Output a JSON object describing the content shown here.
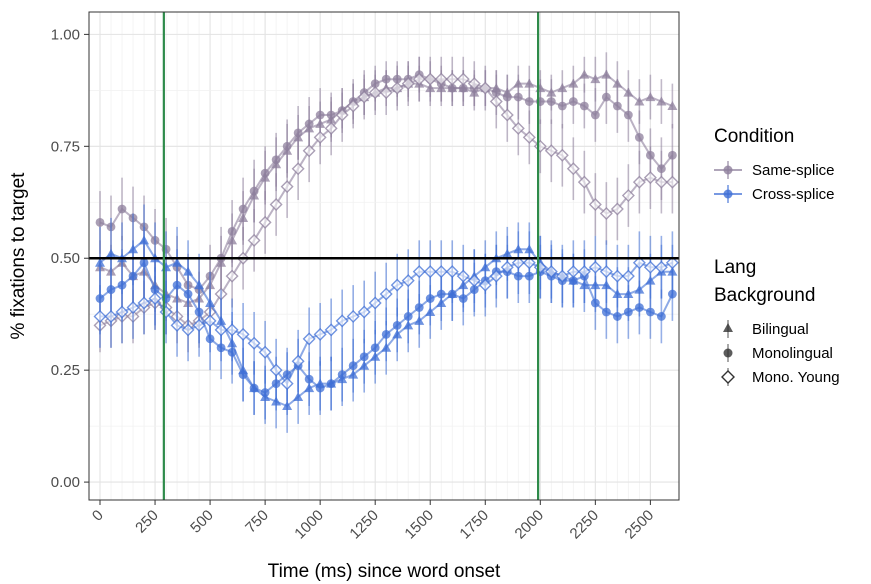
{
  "chart_data": {
    "type": "line",
    "xlabel": "Time (ms) since word onset",
    "ylabel": "% fixations to target",
    "xlim": [
      -50,
      2630
    ],
    "ylim": [
      -0.04,
      1.05
    ],
    "x_ticks": [
      0,
      250,
      500,
      750,
      1000,
      1250,
      1500,
      1750,
      2000,
      2250,
      2500
    ],
    "x_tick_labels": [
      "0",
      "250",
      "500",
      "750",
      "1000",
      "1250",
      "1500",
      "1750",
      "2000",
      "2250",
      "2500"
    ],
    "y_ticks": [
      0,
      0.25,
      0.5,
      0.75,
      1.0
    ],
    "y_tick_labels": [
      "0.00",
      "0.25",
      "0.50",
      "0.75",
      "1.00"
    ],
    "grid": true,
    "reference_lines": {
      "horizontal": [
        {
          "y": 0.5,
          "color": "#000000"
        }
      ],
      "vertical": [
        {
          "x": 290,
          "color": "#2e8b4a"
        },
        {
          "x": 1990,
          "color": "#2e8b4a"
        }
      ]
    },
    "legend": {
      "placement": "right",
      "condition_title": "Condition",
      "condition_entries": [
        {
          "label": "Same-splice",
          "color": "#8e7f9c"
        },
        {
          "label": "Cross-splice",
          "color": "#3f6fd6"
        }
      ],
      "background_title_line1": "Lang",
      "background_title_line2": "Background",
      "background_entries": [
        {
          "label": "Bilingual",
          "shape": "triangle"
        },
        {
          "label": "Monolingual",
          "shape": "circle"
        },
        {
          "label": "Mono. Young",
          "shape": "diamond-open"
        }
      ]
    },
    "x": [
      0,
      50,
      100,
      150,
      200,
      250,
      300,
      350,
      400,
      450,
      500,
      550,
      600,
      650,
      700,
      750,
      800,
      850,
      900,
      950,
      1000,
      1050,
      1100,
      1150,
      1200,
      1250,
      1300,
      1350,
      1400,
      1450,
      1500,
      1550,
      1600,
      1650,
      1700,
      1750,
      1800,
      1850,
      1900,
      1950,
      2000,
      2050,
      2100,
      2150,
      2200,
      2250,
      2300,
      2350,
      2400,
      2450,
      2500,
      2550,
      2600
    ],
    "series": [
      {
        "condition": "Same-splice",
        "group": "Bilingual",
        "color": "#8e7f9c",
        "marker": "triangle",
        "values": [
          0.48,
          0.47,
          0.49,
          0.46,
          0.47,
          0.44,
          0.42,
          0.41,
          0.4,
          0.41,
          0.44,
          0.49,
          0.54,
          0.59,
          0.64,
          0.68,
          0.71,
          0.74,
          0.77,
          0.79,
          0.8,
          0.81,
          0.83,
          0.85,
          0.86,
          0.87,
          0.88,
          0.88,
          0.89,
          0.89,
          0.88,
          0.88,
          0.88,
          0.88,
          0.87,
          0.88,
          0.88,
          0.87,
          0.89,
          0.89,
          0.88,
          0.87,
          0.88,
          0.89,
          0.91,
          0.9,
          0.91,
          0.89,
          0.87,
          0.85,
          0.86,
          0.85,
          0.84
        ],
        "error": [
          0.06,
          0.06,
          0.06,
          0.06,
          0.06,
          0.06,
          0.06,
          0.06,
          0.06,
          0.06,
          0.06,
          0.06,
          0.06,
          0.06,
          0.06,
          0.06,
          0.06,
          0.06,
          0.05,
          0.05,
          0.05,
          0.05,
          0.04,
          0.04,
          0.04,
          0.04,
          0.04,
          0.04,
          0.04,
          0.04,
          0.04,
          0.04,
          0.04,
          0.04,
          0.04,
          0.04,
          0.04,
          0.04,
          0.04,
          0.04,
          0.04,
          0.04,
          0.04,
          0.04,
          0.04,
          0.05,
          0.05,
          0.05,
          0.05,
          0.05,
          0.05,
          0.05,
          0.05
        ]
      },
      {
        "condition": "Same-splice",
        "group": "Monolingual",
        "color": "#8e7f9c",
        "marker": "circle",
        "values": [
          0.58,
          0.57,
          0.61,
          0.59,
          0.57,
          0.54,
          0.52,
          0.48,
          0.44,
          0.43,
          0.46,
          0.5,
          0.56,
          0.61,
          0.65,
          0.69,
          0.72,
          0.75,
          0.78,
          0.8,
          0.82,
          0.82,
          0.83,
          0.85,
          0.87,
          0.89,
          0.9,
          0.9,
          0.9,
          0.91,
          0.9,
          0.89,
          0.88,
          0.88,
          0.88,
          0.88,
          0.87,
          0.86,
          0.86,
          0.85,
          0.85,
          0.85,
          0.84,
          0.85,
          0.84,
          0.82,
          0.86,
          0.84,
          0.82,
          0.77,
          0.73,
          0.7,
          0.73
        ],
        "error": [
          0.07,
          0.07,
          0.07,
          0.07,
          0.07,
          0.07,
          0.07,
          0.07,
          0.07,
          0.07,
          0.07,
          0.07,
          0.07,
          0.07,
          0.07,
          0.06,
          0.06,
          0.06,
          0.06,
          0.06,
          0.06,
          0.05,
          0.05,
          0.05,
          0.05,
          0.04,
          0.04,
          0.04,
          0.04,
          0.04,
          0.04,
          0.04,
          0.04,
          0.04,
          0.04,
          0.04,
          0.05,
          0.05,
          0.05,
          0.05,
          0.05,
          0.05,
          0.05,
          0.05,
          0.05,
          0.06,
          0.06,
          0.06,
          0.06,
          0.06,
          0.06,
          0.07,
          0.07
        ]
      },
      {
        "condition": "Same-splice",
        "group": "Mono. Young",
        "color": "#8e7f9c",
        "marker": "diamond-open",
        "values": [
          0.35,
          0.36,
          0.37,
          0.37,
          0.39,
          0.4,
          0.39,
          0.37,
          0.35,
          0.36,
          0.38,
          0.42,
          0.46,
          0.5,
          0.54,
          0.58,
          0.62,
          0.66,
          0.7,
          0.74,
          0.77,
          0.79,
          0.82,
          0.84,
          0.86,
          0.87,
          0.87,
          0.88,
          0.89,
          0.9,
          0.9,
          0.9,
          0.9,
          0.9,
          0.89,
          0.88,
          0.85,
          0.82,
          0.79,
          0.77,
          0.75,
          0.74,
          0.73,
          0.7,
          0.67,
          0.62,
          0.6,
          0.61,
          0.64,
          0.67,
          0.68,
          0.67,
          0.67
        ],
        "error": [
          0.06,
          0.06,
          0.06,
          0.06,
          0.06,
          0.06,
          0.06,
          0.06,
          0.06,
          0.06,
          0.06,
          0.07,
          0.07,
          0.07,
          0.07,
          0.07,
          0.07,
          0.07,
          0.07,
          0.07,
          0.06,
          0.06,
          0.06,
          0.05,
          0.05,
          0.05,
          0.05,
          0.05,
          0.05,
          0.05,
          0.05,
          0.05,
          0.05,
          0.05,
          0.05,
          0.05,
          0.06,
          0.06,
          0.06,
          0.06,
          0.06,
          0.07,
          0.07,
          0.07,
          0.07,
          0.07,
          0.07,
          0.07,
          0.07,
          0.07,
          0.07,
          0.07,
          0.07
        ]
      },
      {
        "condition": "Cross-splice",
        "group": "Bilingual",
        "color": "#3f6fd6",
        "marker": "triangle",
        "values": [
          0.49,
          0.51,
          0.5,
          0.52,
          0.54,
          0.5,
          0.48,
          0.49,
          0.47,
          0.44,
          0.4,
          0.36,
          0.31,
          0.25,
          0.21,
          0.19,
          0.18,
          0.17,
          0.19,
          0.21,
          0.22,
          0.22,
          0.23,
          0.24,
          0.26,
          0.28,
          0.3,
          0.33,
          0.35,
          0.36,
          0.38,
          0.4,
          0.42,
          0.44,
          0.46,
          0.48,
          0.5,
          0.51,
          0.52,
          0.52,
          0.49,
          0.47,
          0.46,
          0.45,
          0.44,
          0.44,
          0.44,
          0.42,
          0.42,
          0.43,
          0.45,
          0.47,
          0.47
        ],
        "error": [
          0.08,
          0.08,
          0.08,
          0.08,
          0.08,
          0.08,
          0.08,
          0.08,
          0.07,
          0.07,
          0.07,
          0.07,
          0.07,
          0.07,
          0.06,
          0.06,
          0.06,
          0.06,
          0.06,
          0.06,
          0.06,
          0.06,
          0.06,
          0.06,
          0.06,
          0.06,
          0.06,
          0.06,
          0.06,
          0.06,
          0.06,
          0.06,
          0.06,
          0.06,
          0.06,
          0.06,
          0.06,
          0.06,
          0.06,
          0.06,
          0.06,
          0.06,
          0.06,
          0.06,
          0.06,
          0.06,
          0.06,
          0.06,
          0.06,
          0.06,
          0.06,
          0.06,
          0.06
        ]
      },
      {
        "condition": "Cross-splice",
        "group": "Monolingual",
        "color": "#3f6fd6",
        "marker": "circle",
        "values": [
          0.41,
          0.43,
          0.44,
          0.46,
          0.49,
          0.43,
          0.41,
          0.44,
          0.42,
          0.38,
          0.32,
          0.3,
          0.29,
          0.24,
          0.21,
          0.2,
          0.22,
          0.24,
          0.26,
          0.23,
          0.21,
          0.22,
          0.24,
          0.26,
          0.28,
          0.3,
          0.33,
          0.35,
          0.37,
          0.39,
          0.41,
          0.42,
          0.42,
          0.41,
          0.43,
          0.45,
          0.47,
          0.47,
          0.46,
          0.46,
          0.47,
          0.46,
          0.45,
          0.45,
          0.46,
          0.4,
          0.38,
          0.37,
          0.38,
          0.39,
          0.38,
          0.37,
          0.42
        ],
        "error": [
          0.08,
          0.08,
          0.08,
          0.08,
          0.08,
          0.08,
          0.08,
          0.08,
          0.08,
          0.07,
          0.07,
          0.07,
          0.07,
          0.06,
          0.06,
          0.06,
          0.06,
          0.06,
          0.06,
          0.06,
          0.06,
          0.06,
          0.06,
          0.06,
          0.06,
          0.06,
          0.06,
          0.06,
          0.06,
          0.06,
          0.06,
          0.06,
          0.06,
          0.06,
          0.06,
          0.06,
          0.06,
          0.06,
          0.06,
          0.06,
          0.06,
          0.06,
          0.06,
          0.06,
          0.06,
          0.06,
          0.06,
          0.06,
          0.06,
          0.06,
          0.06,
          0.06,
          0.06
        ]
      },
      {
        "condition": "Cross-splice",
        "group": "Mono. Young",
        "color": "#3f6fd6",
        "marker": "diamond-open",
        "values": [
          0.37,
          0.37,
          0.38,
          0.39,
          0.4,
          0.41,
          0.38,
          0.35,
          0.34,
          0.35,
          0.36,
          0.34,
          0.34,
          0.33,
          0.31,
          0.29,
          0.25,
          0.22,
          0.27,
          0.32,
          0.33,
          0.34,
          0.36,
          0.37,
          0.38,
          0.4,
          0.42,
          0.44,
          0.45,
          0.47,
          0.47,
          0.47,
          0.47,
          0.46,
          0.45,
          0.44,
          0.46,
          0.48,
          0.49,
          0.49,
          0.48,
          0.47,
          0.46,
          0.47,
          0.47,
          0.48,
          0.47,
          0.46,
          0.46,
          0.49,
          0.48,
          0.48,
          0.49
        ],
        "error": [
          0.07,
          0.07,
          0.07,
          0.07,
          0.07,
          0.07,
          0.07,
          0.07,
          0.07,
          0.07,
          0.07,
          0.07,
          0.07,
          0.07,
          0.07,
          0.07,
          0.07,
          0.07,
          0.07,
          0.07,
          0.07,
          0.07,
          0.07,
          0.07,
          0.07,
          0.07,
          0.07,
          0.07,
          0.07,
          0.07,
          0.07,
          0.07,
          0.07,
          0.07,
          0.07,
          0.07,
          0.07,
          0.07,
          0.07,
          0.07,
          0.07,
          0.07,
          0.07,
          0.07,
          0.07,
          0.07,
          0.07,
          0.07,
          0.07,
          0.07,
          0.07,
          0.07,
          0.07
        ]
      }
    ]
  }
}
